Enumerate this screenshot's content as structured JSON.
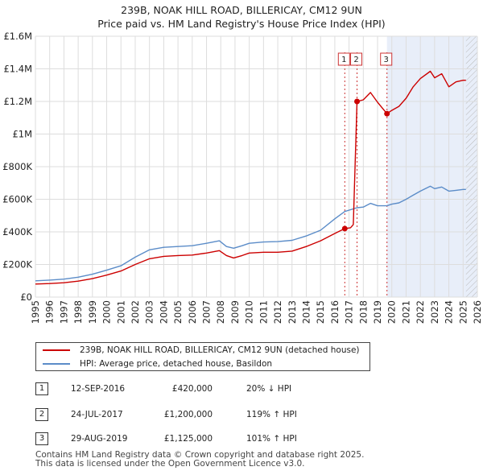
{
  "chart_data": {
    "type": "line",
    "title": "239B, NOAK HILL ROAD, BILLERICAY, CM12 9UN",
    "subtitle": "Price paid vs. HM Land Registry's House Price Index (HPI)",
    "xlim": [
      1995,
      2026
    ],
    "ylim": [
      0,
      1600000
    ],
    "x_ticks": [
      "1995",
      "1996",
      "1997",
      "1998",
      "1999",
      "2000",
      "2001",
      "2002",
      "2003",
      "2004",
      "2005",
      "2006",
      "2007",
      "2008",
      "2009",
      "2010",
      "2011",
      "2012",
      "2013",
      "2014",
      "2015",
      "2016",
      "2017",
      "2018",
      "2019",
      "2020",
      "2021",
      "2022",
      "2023",
      "2024",
      "2025",
      "2026"
    ],
    "y_ticks": [
      {
        "value": 0,
        "label": "£0"
      },
      {
        "value": 200000,
        "label": "£200K"
      },
      {
        "value": 400000,
        "label": "£400K"
      },
      {
        "value": 600000,
        "label": "£600K"
      },
      {
        "value": 800000,
        "label": "£800K"
      },
      {
        "value": 1000000,
        "label": "£1M"
      },
      {
        "value": 1200000,
        "label": "£1.2M"
      },
      {
        "value": 1400000,
        "label": "£1.4M"
      },
      {
        "value": 1600000,
        "label": "£1.6M"
      }
    ],
    "grid": true,
    "shaded_region": {
      "from": 2019.66,
      "to": 2026
    },
    "hatched_region": {
      "from": 2025.2,
      "to": 2026
    },
    "series": [
      {
        "name": "239B, NOAK HILL ROAD, BILLERICAY, CM12 9UN (detached house)",
        "color": "#cc0000",
        "x": [
          1995,
          1996,
          1997,
          1998,
          1999,
          2000,
          2001,
          2002,
          2003,
          2004,
          2005,
          2006,
          2007,
          2007.9,
          2008.4,
          2008.9,
          2009.5,
          2010,
          2011,
          2012,
          2013,
          2014,
          2015,
          2016,
          2016.7,
          2017.1,
          2017.3,
          2017.56,
          2018,
          2018.5,
          2019,
          2019.66,
          2020,
          2020.5,
          2021,
          2021.5,
          2022,
          2022.7,
          2023,
          2023.5,
          2024,
          2024.5,
          2025,
          2025.2
        ],
        "y": [
          80000,
          83000,
          88000,
          98000,
          113000,
          135000,
          160000,
          200000,
          235000,
          250000,
          255000,
          258000,
          270000,
          285000,
          255000,
          240000,
          255000,
          270000,
          275000,
          275000,
          282000,
          310000,
          345000,
          390000,
          420000,
          425000,
          445000,
          1200000,
          1210000,
          1255000,
          1195000,
          1125000,
          1145000,
          1170000,
          1220000,
          1290000,
          1340000,
          1385000,
          1345000,
          1370000,
          1290000,
          1320000,
          1330000,
          1330000
        ]
      },
      {
        "name": "HPI: Average price, detached house, Basildon",
        "color": "#5b8cc8",
        "x": [
          1995,
          1996,
          1997,
          1998,
          1999,
          2000,
          2001,
          2002,
          2003,
          2004,
          2005,
          2006,
          2007,
          2007.9,
          2008.4,
          2008.9,
          2009.5,
          2010,
          2011,
          2012,
          2013,
          2014,
          2015,
          2016,
          2016.7,
          2017.56,
          2018,
          2018.5,
          2019,
          2019.66,
          2020,
          2020.5,
          2021,
          2021.5,
          2022,
          2022.7,
          2023,
          2023.5,
          2024,
          2024.5,
          2025,
          2025.2
        ],
        "y": [
          100000,
          104000,
          110000,
          122000,
          140000,
          165000,
          192000,
          245000,
          290000,
          305000,
          310000,
          315000,
          330000,
          345000,
          310000,
          300000,
          315000,
          330000,
          338000,
          340000,
          348000,
          375000,
          410000,
          480000,
          525000,
          548000,
          552000,
          575000,
          560000,
          560000,
          570000,
          578000,
          600000,
          625000,
          650000,
          680000,
          665000,
          675000,
          650000,
          655000,
          660000,
          660000
        ]
      }
    ],
    "annotations": [
      {
        "label": "1",
        "x": 2016.7,
        "y": 420000
      },
      {
        "label": "2",
        "x": 2017.56,
        "y": 1200000
      },
      {
        "label": "3",
        "x": 2019.66,
        "y": 1125000
      }
    ]
  },
  "legend": [
    {
      "label": "239B, NOAK HILL ROAD, BILLERICAY, CM12 9UN (detached house)",
      "color": "#cc0000"
    },
    {
      "label": "HPI: Average price, detached house, Basildon",
      "color": "#5b8cc8"
    }
  ],
  "transactions": [
    {
      "num": "1",
      "date": "12-SEP-2016",
      "price": "£420,000",
      "hpi": "20% ↓ HPI"
    },
    {
      "num": "2",
      "date": "24-JUL-2017",
      "price": "£1,200,000",
      "hpi": "119% ↑ HPI"
    },
    {
      "num": "3",
      "date": "29-AUG-2019",
      "price": "£1,125,000",
      "hpi": "101% ↑ HPI"
    }
  ],
  "footer": {
    "line1": "Contains HM Land Registry data © Crown copyright and database right 2025.",
    "line2": "This data is licensed under the Open Government Licence v3.0."
  }
}
